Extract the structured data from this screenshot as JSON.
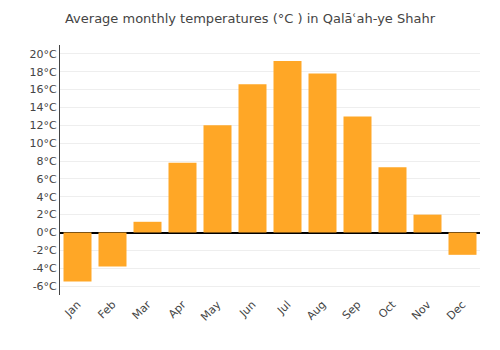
{
  "chart_data": {
    "type": "bar",
    "title": "Average monthly temperatures (°C ) in Qalāʿah-ye Shahr",
    "categories": [
      "Jan",
      "Feb",
      "Mar",
      "Apr",
      "May",
      "Jun",
      "Jul",
      "Aug",
      "Sep",
      "Oct",
      "Nov",
      "Dec"
    ],
    "values": [
      -5.5,
      -3.8,
      1.2,
      7.8,
      12.0,
      16.6,
      19.2,
      17.8,
      13.0,
      7.3,
      2.0,
      -2.5
    ],
    "color": "#FFA726",
    "ylim": [
      -7,
      21
    ],
    "yticks": [
      {
        "value": -6,
        "label": "-6°C"
      },
      {
        "value": -4,
        "label": "-4°C"
      },
      {
        "value": -2,
        "label": "-2°C"
      },
      {
        "value": 0,
        "label": "0°C"
      },
      {
        "value": 2,
        "label": "2°C"
      },
      {
        "value": 4,
        "label": "4°C"
      },
      {
        "value": 6,
        "label": "6°C"
      },
      {
        "value": 8,
        "label": "8°C"
      },
      {
        "value": 10,
        "label": "10°C"
      },
      {
        "value": 12,
        "label": "12°C"
      },
      {
        "value": 14,
        "label": "14°C"
      },
      {
        "value": 16,
        "label": "16°C"
      },
      {
        "value": 18,
        "label": "18°C"
      },
      {
        "value": 20,
        "label": "20°C"
      }
    ],
    "grid": true
  }
}
